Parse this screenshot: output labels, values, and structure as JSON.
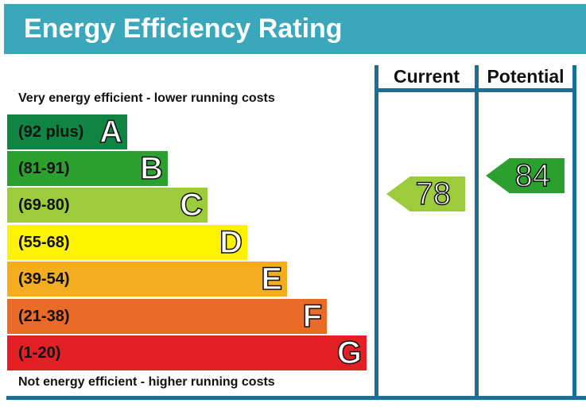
{
  "title": "Energy Efficiency Rating",
  "columns": {
    "current": "Current",
    "potential": "Potential"
  },
  "top_note": "Very energy efficient - lower running costs",
  "bottom_note": "Not energy efficient - higher running costs",
  "chart_data": {
    "type": "bar",
    "bands": [
      {
        "letter": "A",
        "range": "(92 plus)",
        "color": "#0f8443"
      },
      {
        "letter": "B",
        "range": "(81-91)",
        "color": "#2ca02f"
      },
      {
        "letter": "C",
        "range": "(69-80)",
        "color": "#9ccb3b"
      },
      {
        "letter": "D",
        "range": "(55-68)",
        "color": "#fdf200"
      },
      {
        "letter": "E",
        "range": "(39-54)",
        "color": "#f3ad1f"
      },
      {
        "letter": "F",
        "range": "(21-38)",
        "color": "#ea6b27"
      },
      {
        "letter": "G",
        "range": "(1-20)",
        "color": "#e31e24"
      }
    ],
    "current": {
      "value": "78",
      "color": "#9ccb3b"
    },
    "potential": {
      "value": "84",
      "color": "#2ca02f"
    }
  }
}
